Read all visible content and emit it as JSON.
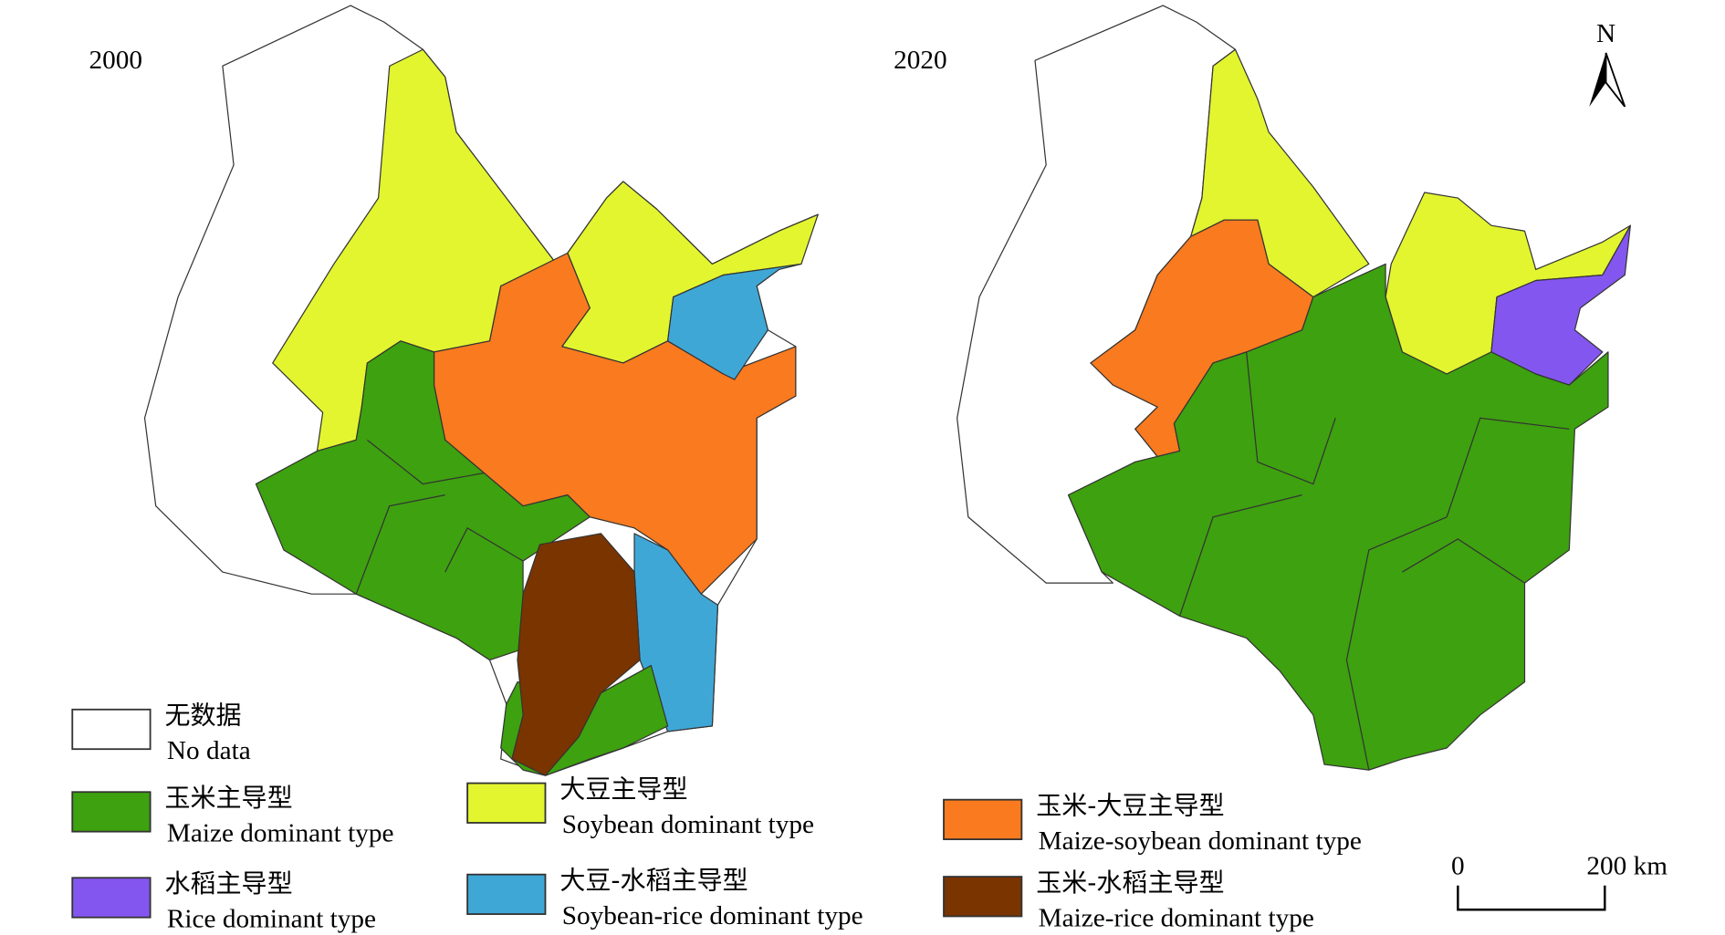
{
  "maps": [
    {
      "year": "2000"
    },
    {
      "year": "2020"
    }
  ],
  "north": "N",
  "legend": [
    {
      "zh": "无数据",
      "en": "No data",
      "color": "#ffffff"
    },
    {
      "zh": "玉米主导型",
      "en": "Maize dominant type",
      "color": "#3ea10f"
    },
    {
      "zh": "水稻主导型",
      "en": "Rice dominant type",
      "color": "#8456f0"
    },
    {
      "zh": "大豆主导型",
      "en": "Soybean dominant type",
      "color": "#e2f52f"
    },
    {
      "zh": "大豆-水稻主导型",
      "en": "Soybean-rice dominant type",
      "color": "#3fa7d6"
    },
    {
      "zh": "玉米-大豆主导型",
      "en": "Maize-soybean dominant type",
      "color": "#f97a1f"
    },
    {
      "zh": "玉米-水稻主导型",
      "en": "Maize-rice dominant type",
      "color": "#7a3400"
    }
  ],
  "scale_bar": {
    "labels": [
      "0",
      "200 km"
    ]
  }
}
